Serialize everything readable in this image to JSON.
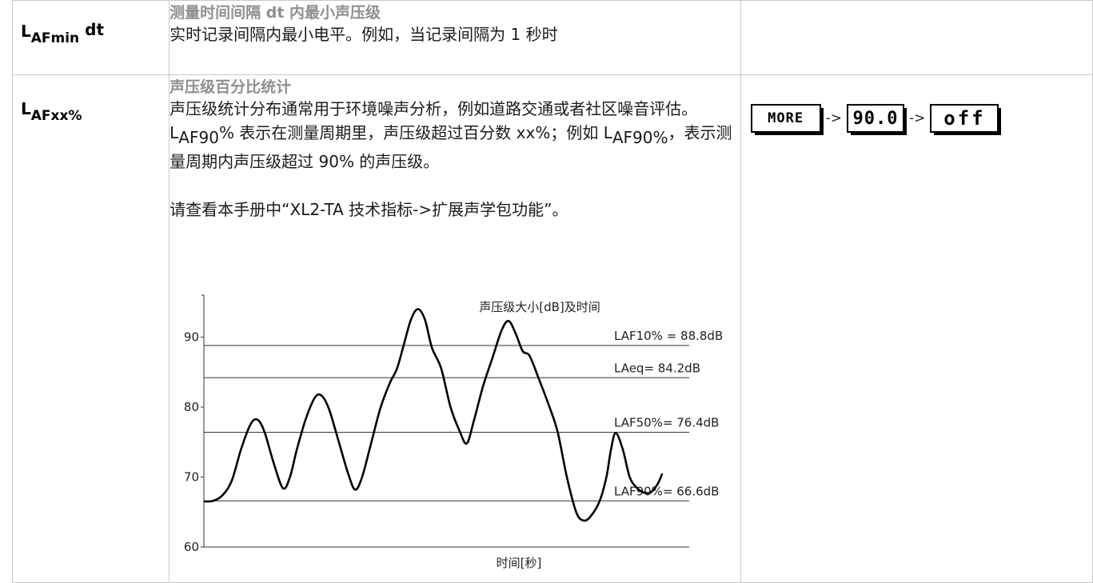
{
  "rows": [
    {
      "term": {
        "main": "L",
        "sub": "AFmin",
        "tail": " dt"
      },
      "title": "测量时间间隔 dt 内最小声压级",
      "text": "实时记录间隔内最小电平。例如，当记录间隔为 1 秒时"
    },
    {
      "term": {
        "main": "L",
        "sub": "AFxx%"
      },
      "title": "声压级百分比统计",
      "para1_a": "声压级统计分布通常用于环境噪声分析，例如道路交通或者社区噪音评估。L",
      "para1_sub1": "AF90",
      "para1_b": "% 表示在测量周期里，声压级超过百分数 xx%；例如 L",
      "para1_sub2": "AF90%",
      "para1_c": "，表示测量周期内声压级超过 90% 的声压级。",
      "para2": "请查看本手册中“XL2-TA 技术指标->扩展声学包功能”。",
      "display": {
        "more_label": "MORE",
        "value_label": "90.0",
        "off_label": "off",
        "arrow": "->"
      }
    }
  ],
  "chart_data": {
    "type": "line",
    "title": "声压级大小[dB]及时间",
    "xlabel": "时间[秒]",
    "ylabel": "",
    "yticks": [
      60,
      70,
      80,
      90
    ],
    "ylim": [
      60,
      96
    ],
    "xlim": [
      0,
      100
    ],
    "series": [
      {
        "values": [
          [
            0,
            66.5
          ],
          [
            2,
            66.6
          ],
          [
            4,
            67.4
          ],
          [
            6,
            69.5
          ],
          [
            8,
            74
          ],
          [
            10,
            77.5
          ],
          [
            11.5,
            78.2
          ],
          [
            13,
            76.5
          ],
          [
            15,
            72
          ],
          [
            17,
            68.4
          ],
          [
            18.5,
            70
          ],
          [
            20,
            74
          ],
          [
            22,
            78.5
          ],
          [
            24,
            81.5
          ],
          [
            25.5,
            81.5
          ],
          [
            27,
            79.5
          ],
          [
            29,
            75
          ],
          [
            31,
            70.5
          ],
          [
            32.5,
            68.2
          ],
          [
            34,
            70
          ],
          [
            36,
            75
          ],
          [
            38,
            80
          ],
          [
            40,
            83.5
          ],
          [
            41.5,
            85.5
          ],
          [
            43,
            89
          ],
          [
            44.5,
            92.5
          ],
          [
            46,
            94
          ],
          [
            47.5,
            92.5
          ],
          [
            49,
            88.5
          ],
          [
            51,
            85.5
          ],
          [
            53,
            80
          ],
          [
            55,
            76.5
          ],
          [
            56.5,
            74.8
          ],
          [
            58,
            78
          ],
          [
            60,
            83
          ],
          [
            62,
            87
          ],
          [
            64,
            91
          ],
          [
            65.5,
            92.3
          ],
          [
            67,
            90.5
          ],
          [
            68.5,
            88
          ],
          [
            70,
            87.3
          ],
          [
            72,
            84
          ],
          [
            74,
            80.5
          ],
          [
            76,
            76.5
          ],
          [
            78,
            70
          ],
          [
            80,
            65
          ],
          [
            81.5,
            63.8
          ],
          [
            83,
            64.3
          ],
          [
            85,
            66.5
          ],
          [
            86.5,
            70
          ],
          [
            87.5,
            74
          ],
          [
            88.5,
            76.3
          ],
          [
            90,
            74
          ],
          [
            91.5,
            70
          ],
          [
            93,
            68.5
          ],
          [
            94.5,
            67.8
          ],
          [
            96,
            67.8
          ],
          [
            97.5,
            69
          ],
          [
            98.5,
            70.5
          ]
        ]
      }
    ],
    "reference_lines": [
      {
        "label": "LAF10% = 88.8dB",
        "y": 88.8
      },
      {
        "label": "LAeq= 84.2dB",
        "y": 84.2
      },
      {
        "label": "LAF50%= 76.4dB",
        "y": 76.4
      },
      {
        "label": "LAF90%= 66.6dB",
        "y": 66.6
      }
    ]
  }
}
